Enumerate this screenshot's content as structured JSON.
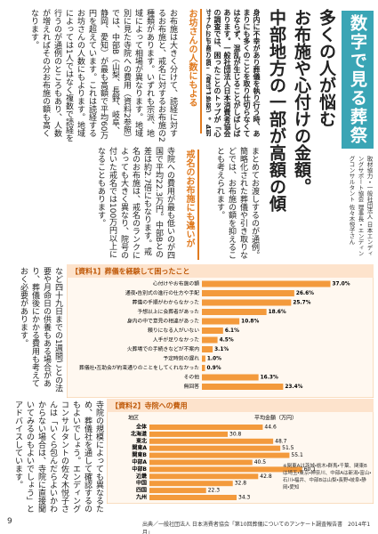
{
  "header": {
    "banner": "数字で見る葬祭",
    "headline": [
      "多くの人が悩む",
      "お布施や心付けの金額。",
      "中部地方の一部が高額の傾向"
    ],
    "lead": "身内に不幸があり葬儀を執り行う時、あまりにも多くのことを取り仕切らなくてはならず、混乱が生じることがしばしばあります。一般社団法人日本消費者協会の調査では、困ったことのトップが「心付けやお布施の額」（資料1参照）。4割近くの人がそう答えています。",
    "credit": "取材協力・一般社団法人 日本エンディングサポート協会 理事長・エンディングコンサルタント 佐々木悦子さん"
  },
  "body": {
    "subheads": [
      "お坊さんの人数にもよる",
      "戒名のお布施にも違いが"
    ],
    "paragraphs": [
      "お布施は大きく分けて、読経に対するお布施と、戒名に対するお布施の2種類があります。いずれも宗派、地域によって相場が異なります。地域別に見た寺院への費用（資料2参照）では、中部B（山梨、長野、岐阜、静岡、愛知）が最も高額で平均60万円を超えています。これは読経するお坊さんの人数にもよります。地域によっては1人ではなく複数で読経を行うのが通例のところもあり、人数が増えればその分お布施の額も高くなります。",
      "まとめてお渡しするのが通例。簡略化された葬儀や引き取りなどでは、お布施の額を抑えることも考えられます。",
      "寺院への費用が最も低いのが四国で平均22.3万円。中部Bとの差は約2.7倍にもなります。戒名のお布施は、戒名のランクによっても大きく異なり、院号の付いた戒名では100万円以上になることもあります。",
      "など四十九日までの1週間ごとの法要や月命日の供養もある場合があり、葬儀後にかかる費用も考えておく必要があります。",
      "寺院の規模によっても異なるため、葬儀社を通して確認するのもよいでしょう。エンディングコンサルタントの佐々木悦子さんは「いくら包んだらよいかわからない場合は、寺院に直接聞いてみるのもよいでしょう」とアドバイスしています。"
    ]
  },
  "chart1": {
    "title": "【資料1】葬儀を経験して困ったこと",
    "categories": [
      "心付けやお布施の額",
      "通夜・告別式の進行の仕方や手配",
      "葬儀の手順がわからなかった",
      "予想以上に会葬者があった",
      "身内の中で意見の相違があった",
      "頼りになる人がいない",
      "人手が足りなかった",
      "火葬場での手続きなどが不案内",
      "予定時刻の遅れ",
      "葬儀社・互助会が約束通りのことをしてくれなかった",
      "その他",
      "無回答"
    ],
    "values": [
      37.0,
      26.6,
      25.7,
      18.6,
      10.8,
      6.1,
      4.5,
      3.1,
      1.0,
      0.9,
      16.3,
      23.4
    ],
    "value_labels": [
      "37.0%",
      "26.6%",
      "25.7%",
      "18.6%",
      "10.8%",
      "6.1%",
      "4.5%",
      "3.1%",
      "1.0%",
      "0.9%",
      "16.3%",
      "23.4%"
    ],
    "xlim": [
      0,
      42
    ],
    "color": "#f39a3c"
  },
  "chart2": {
    "title": "【資料2】寺院への費用",
    "category_header": "地区",
    "value_header": "平均金額（万円）",
    "categories": [
      "全体",
      "北海道",
      "東北",
      "関東A",
      "関東B",
      "中部A",
      "中部B",
      "近畿",
      "中国",
      "四国",
      "九州"
    ],
    "values": [
      44.6,
      30.8,
      48.7,
      51.5,
      55.1,
      40.5,
      60.1,
      42.8,
      32.8,
      22.3,
      34.3
    ],
    "xlim": [
      0,
      70
    ],
    "color": "#f39a3c",
    "note": "※関東Aは茨城・栃木・群馬・千葉、関東Bは埼玉・東京・神奈川、中部Aは新潟・富山・石川・福井、中部Bは山梨・長野・岐阜・静岡・愛知"
  },
  "footer": {
    "page": "9",
    "source": "出典／一般社団法人 日本消費者協会「第10回葬儀についてのアンケート調査報告書　2014年1月」"
  }
}
